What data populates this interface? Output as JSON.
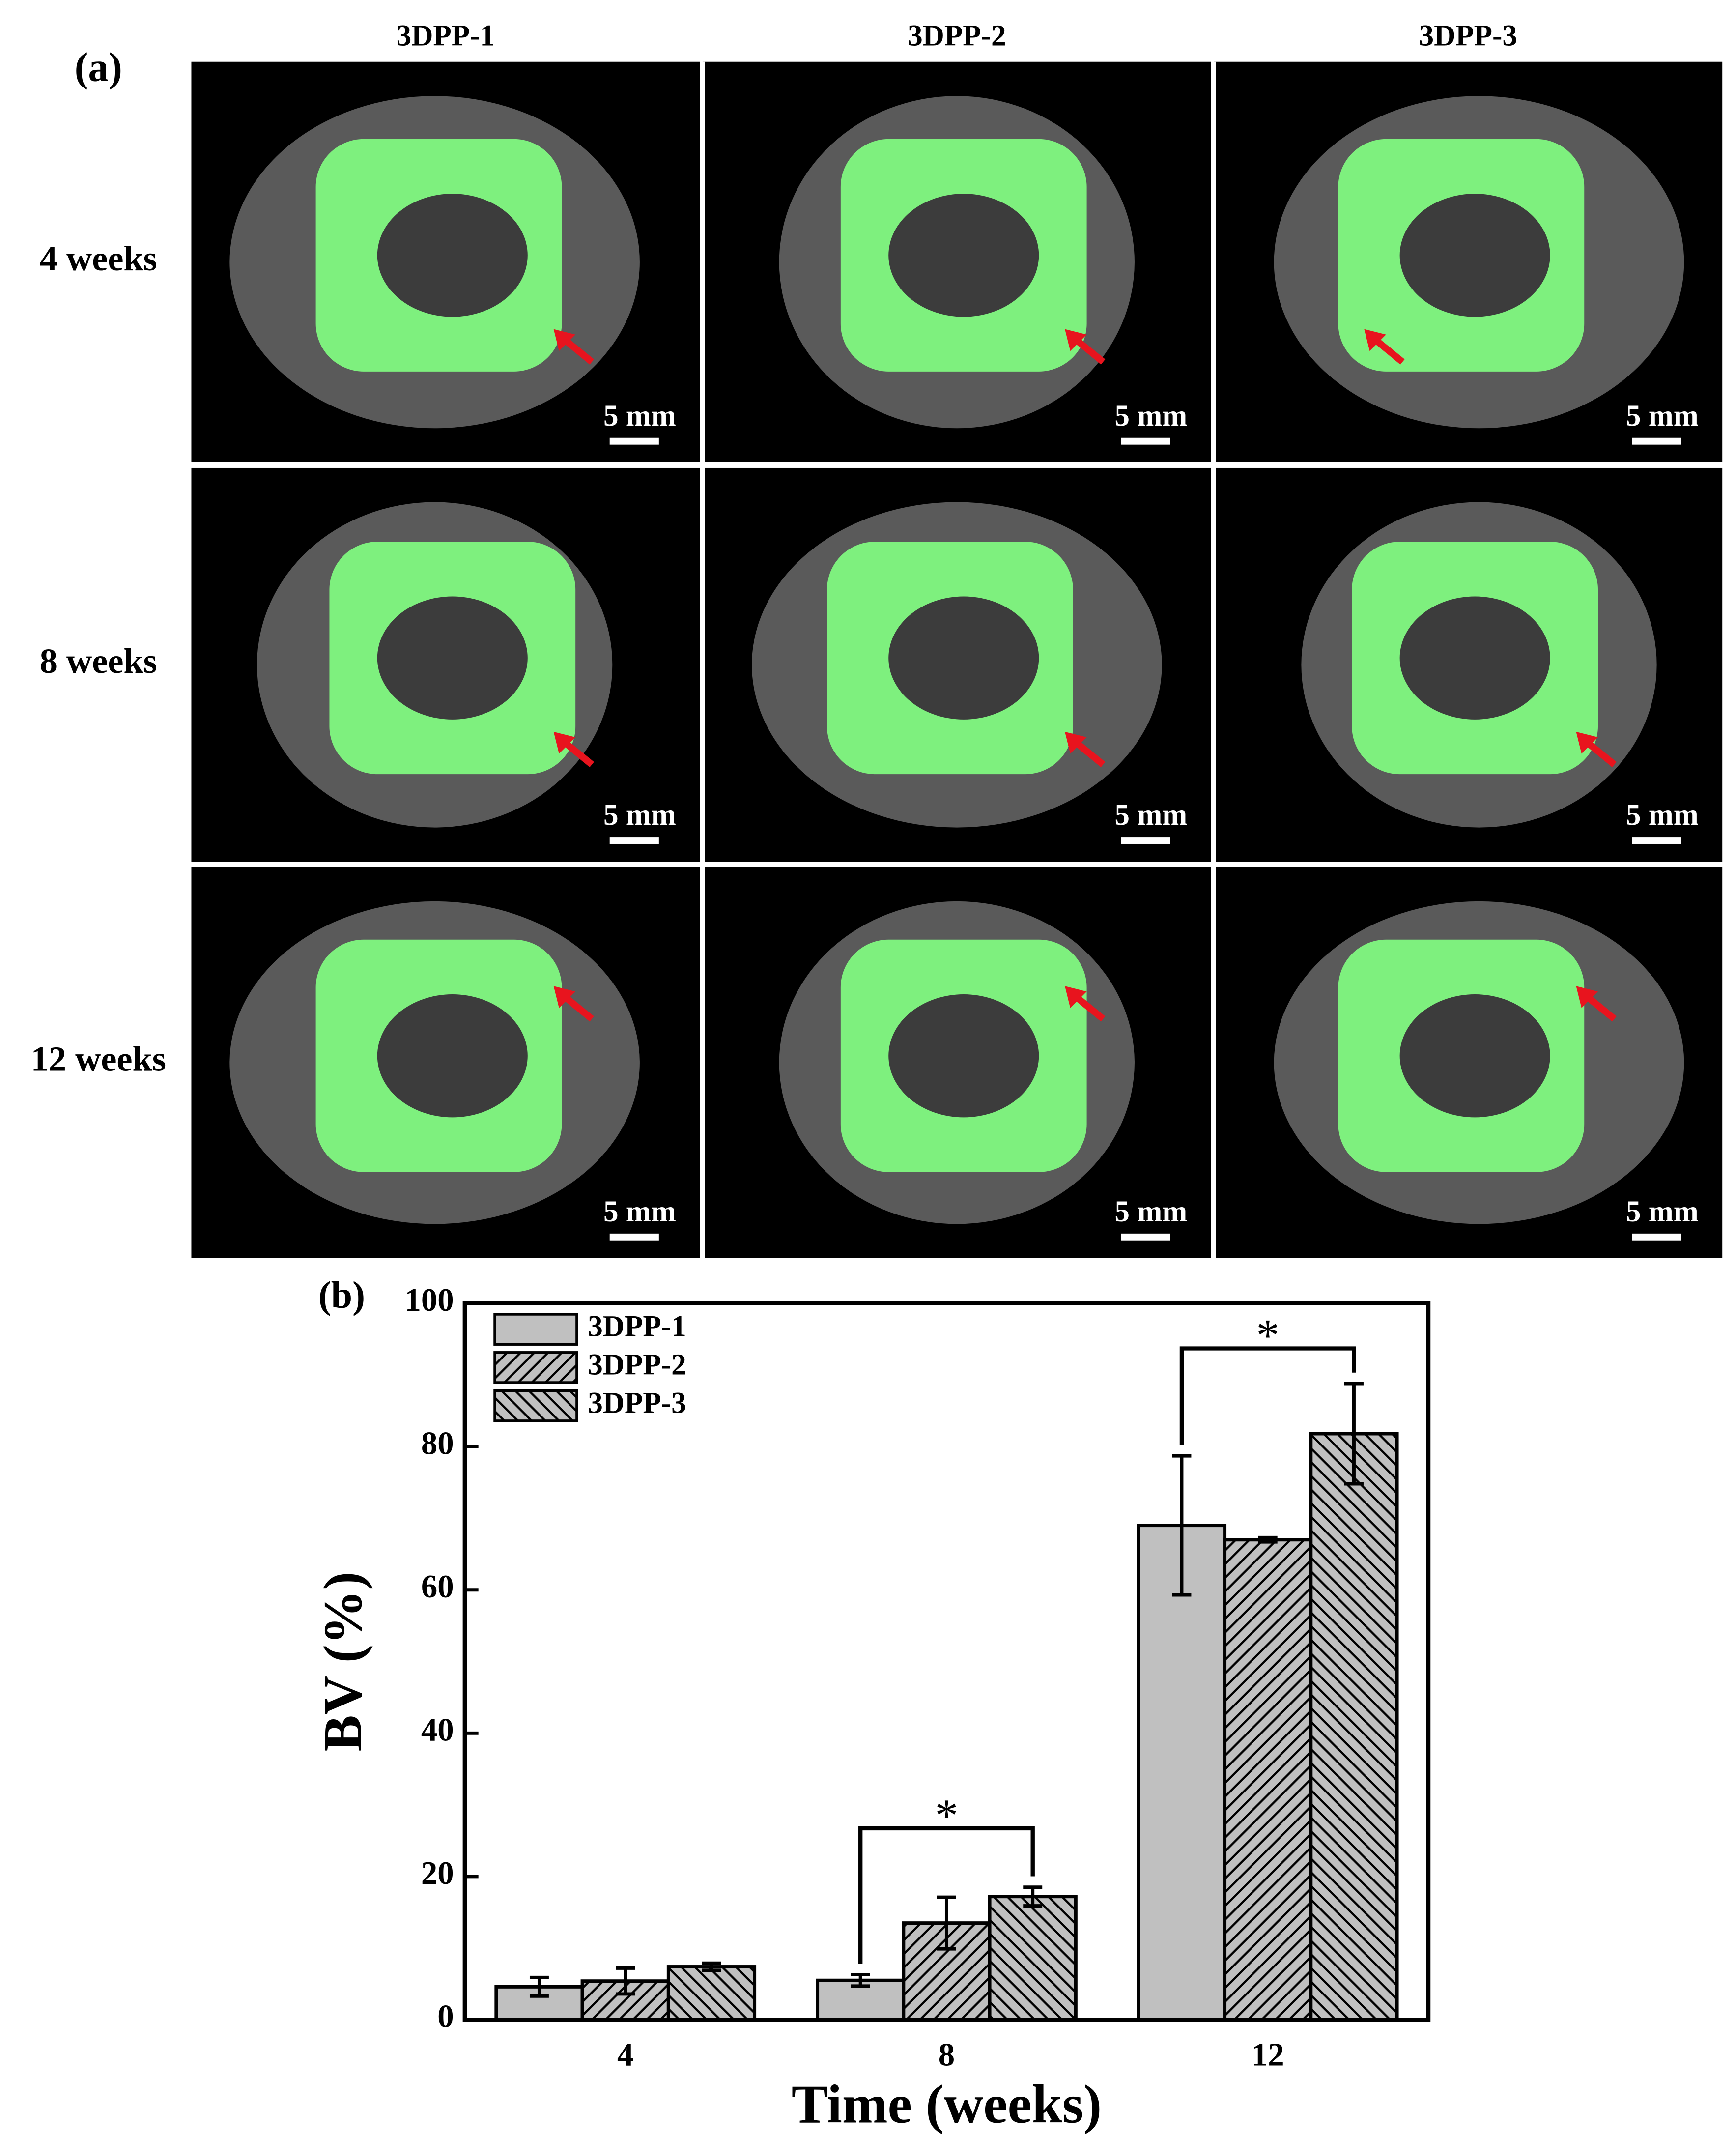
{
  "panel_a": {
    "label": "(a)",
    "columns": [
      "3DPP-1",
      "3DPP-2",
      "3DPP-3"
    ],
    "rows": [
      "4 weeks",
      "8 weeks",
      "12 weeks"
    ],
    "scale_bar": "5 mm"
  },
  "chart_data": {
    "type": "bar",
    "label": "(b)",
    "x_label": "Time (weeks)",
    "y_label": "BV (%)",
    "categories": [
      "4",
      "8",
      "12"
    ],
    "series": [
      {
        "name": "3DPP-1",
        "color": "#c0c0c0",
        "hatch": "none",
        "values": [
          4.6,
          5.5,
          69.0
        ],
        "errors": [
          1.3,
          0.8,
          9.7
        ]
      },
      {
        "name": "3DPP-2",
        "color": "#c0c0c0",
        "hatch": "/",
        "values": [
          5.4,
          13.5,
          67.0
        ],
        "errors": [
          1.8,
          3.6,
          0.3
        ]
      },
      {
        "name": "3DPP-3",
        "color": "#c0c0c0",
        "hatch": "\\",
        "values": [
          7.4,
          17.2,
          81.8
        ],
        "errors": [
          0.5,
          1.3,
          7.0
        ]
      }
    ],
    "annotations": [
      "*",
      "*"
    ],
    "ylim": [
      0,
      100
    ],
    "yticks": [
      0,
      20,
      40,
      60,
      80,
      100
    ],
    "grid": false
  }
}
